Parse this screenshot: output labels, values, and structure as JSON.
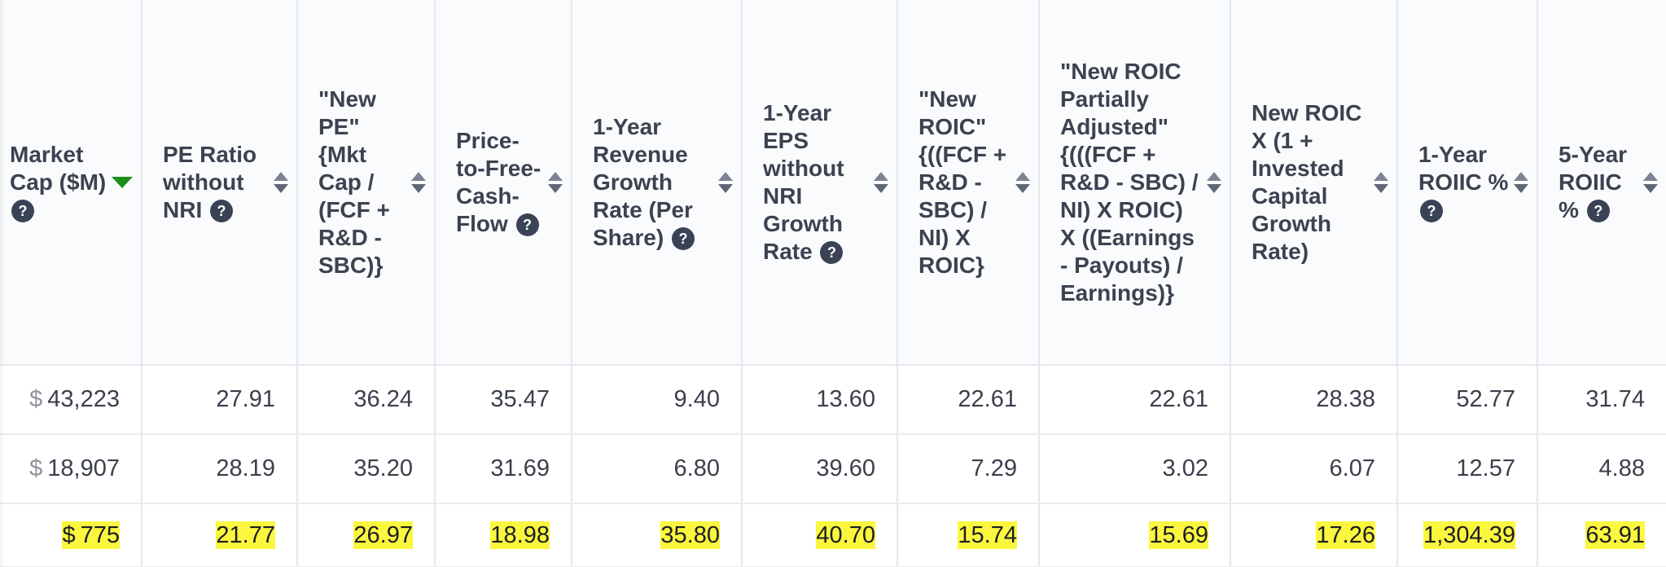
{
  "columns": [
    {
      "id": "market-cap",
      "label": "Market Cap ($M)",
      "help": "?",
      "sort": "desc"
    },
    {
      "id": "pe-ratio-without-nri",
      "label": "PE Ratio without NRI",
      "help": "?",
      "sort": "none"
    },
    {
      "id": "new-pe",
      "label": "\"New PE\" {Mkt Cap / (FCF + R&D - SBC)}",
      "help": "",
      "sort": "none"
    },
    {
      "id": "price-to-free-cash-flow",
      "label": "Price-to-Free-Cash-Flow",
      "help": "?",
      "sort": "none"
    },
    {
      "id": "revenue-growth",
      "label": "1-Year Revenue Growth Rate (Per Share)",
      "help": "?",
      "sort": "none"
    },
    {
      "id": "eps-growth",
      "label": "1-Year EPS without NRI Growth Rate",
      "help": "?",
      "sort": "none"
    },
    {
      "id": "new-roic",
      "label": "\"New ROIC\" {((FCF + R&D - SBC) / NI) X ROIC}",
      "help": "",
      "sort": "none"
    },
    {
      "id": "new-roic-partially-adjusted",
      "label": "\"New ROIC Partially Adjusted\" {(((FCF + R&D - SBC) / NI) X ROIC) X ((Earnings - Payouts) / Earnings)}",
      "help": "",
      "sort": "none"
    },
    {
      "id": "new-roic-x-ic-growth",
      "label": "New ROIC X (1 + Invested Capital Growth Rate)",
      "help": "",
      "sort": "none"
    },
    {
      "id": "roiic-1y",
      "label": "1-Year ROIIC %",
      "help": "?",
      "sort": "none"
    },
    {
      "id": "roiic-5y",
      "label": "5-Year ROIIC %",
      "help": "?",
      "sort": "none"
    }
  ],
  "currency_symbol": "$",
  "rows": [
    {
      "highlighted": false,
      "cells": [
        "43,223",
        "27.91",
        "36.24",
        "35.47",
        "9.40",
        "13.60",
        "22.61",
        "22.61",
        "28.38",
        "52.77",
        "31.74"
      ]
    },
    {
      "highlighted": false,
      "cells": [
        "18,907",
        "28.19",
        "35.20",
        "31.69",
        "6.80",
        "39.60",
        "7.29",
        "3.02",
        "6.07",
        "12.57",
        "4.88"
      ]
    },
    {
      "highlighted": true,
      "cells": [
        "775",
        "21.77",
        "26.97",
        "18.98",
        "35.80",
        "40.70",
        "15.74",
        "15.69",
        "17.26",
        "1,304.39",
        "63.91"
      ]
    }
  ],
  "colors": {
    "highlight": "#fbf73f",
    "sort_active": "#1a8f1a",
    "help_icon_bg": "#3a4256",
    "header_bg": "#fafbfc",
    "border": "#e4e8ee"
  }
}
